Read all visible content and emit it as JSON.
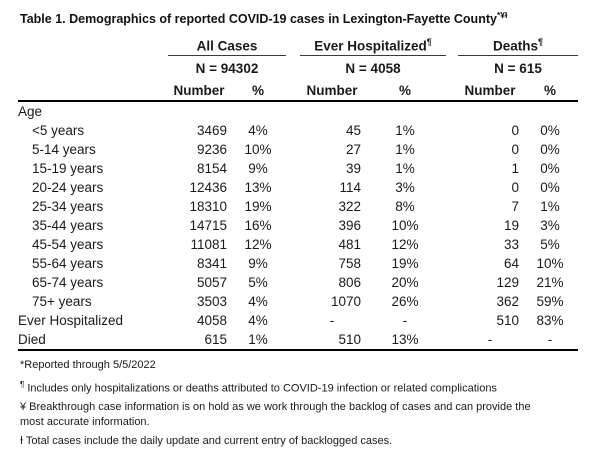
{
  "title": {
    "text": "Table 1. Demographics of reported COVID-19 cases in Lexington-Fayette County",
    "superscript": "*¥Ɨ"
  },
  "table": {
    "groups": [
      {
        "label": "All Cases",
        "sup": "",
        "n": "N = 94302"
      },
      {
        "label": "Ever Hospitalized",
        "sup": "¶",
        "n": "N = 4058"
      },
      {
        "label": "Deaths",
        "sup": "¶",
        "n": "N = 615"
      }
    ],
    "col_number": "Number",
    "col_percent": "%",
    "rows": [
      {
        "label": "Age",
        "cells": [
          "",
          "",
          "",
          "",
          "",
          ""
        ]
      },
      {
        "label": "<5 years",
        "cells": [
          "3469",
          "4%",
          "45",
          "1%",
          "0",
          "0%"
        ]
      },
      {
        "label": "5-14 years",
        "cells": [
          "9236",
          "10%",
          "27",
          "1%",
          "0",
          "0%"
        ]
      },
      {
        "label": "15-19 years",
        "cells": [
          "8154",
          "9%",
          "39",
          "1%",
          "1",
          "0%"
        ]
      },
      {
        "label": "20-24 years",
        "cells": [
          "12436",
          "13%",
          "114",
          "3%",
          "0",
          "0%"
        ]
      },
      {
        "label": "25-34 years",
        "cells": [
          "18310",
          "19%",
          "322",
          "8%",
          "7",
          "1%"
        ]
      },
      {
        "label": "35-44 years",
        "cells": [
          "14715",
          "16%",
          "396",
          "10%",
          "19",
          "3%"
        ]
      },
      {
        "label": "45-54 years",
        "cells": [
          "11081",
          "12%",
          "481",
          "12%",
          "33",
          "5%"
        ]
      },
      {
        "label": "55-64 years",
        "cells": [
          "8341",
          "9%",
          "758",
          "19%",
          "64",
          "10%"
        ]
      },
      {
        "label": "65-74 years",
        "cells": [
          "5057",
          "5%",
          "806",
          "20%",
          "129",
          "21%"
        ]
      },
      {
        "label": "75+ years",
        "cells": [
          "3503",
          "4%",
          "1070",
          "26%",
          "362",
          "59%"
        ]
      },
      {
        "label": "Ever Hospitalized",
        "cells": [
          "4058",
          "4%",
          "-",
          "-",
          "510",
          "83%"
        ]
      },
      {
        "label": "Died",
        "cells": [
          "615",
          "1%",
          "510",
          "13%",
          "-",
          "-"
        ]
      }
    ]
  },
  "footnotes": {
    "reported": "*Reported through 5/5/2022",
    "pilcrow_marker": "¶",
    "pilcrow_text": " Includes only hospitalizations or deaths attributed to COVID-19 infection or related complications",
    "breakthrough_line1": "¥ Breakthrough case information is on hold as we work through the backlog of cases and can provide the",
    "breakthrough_line2": "most accurate information.",
    "total_cases": "Ɨ Total cases include the daily update and current entry of backlogged cases."
  }
}
